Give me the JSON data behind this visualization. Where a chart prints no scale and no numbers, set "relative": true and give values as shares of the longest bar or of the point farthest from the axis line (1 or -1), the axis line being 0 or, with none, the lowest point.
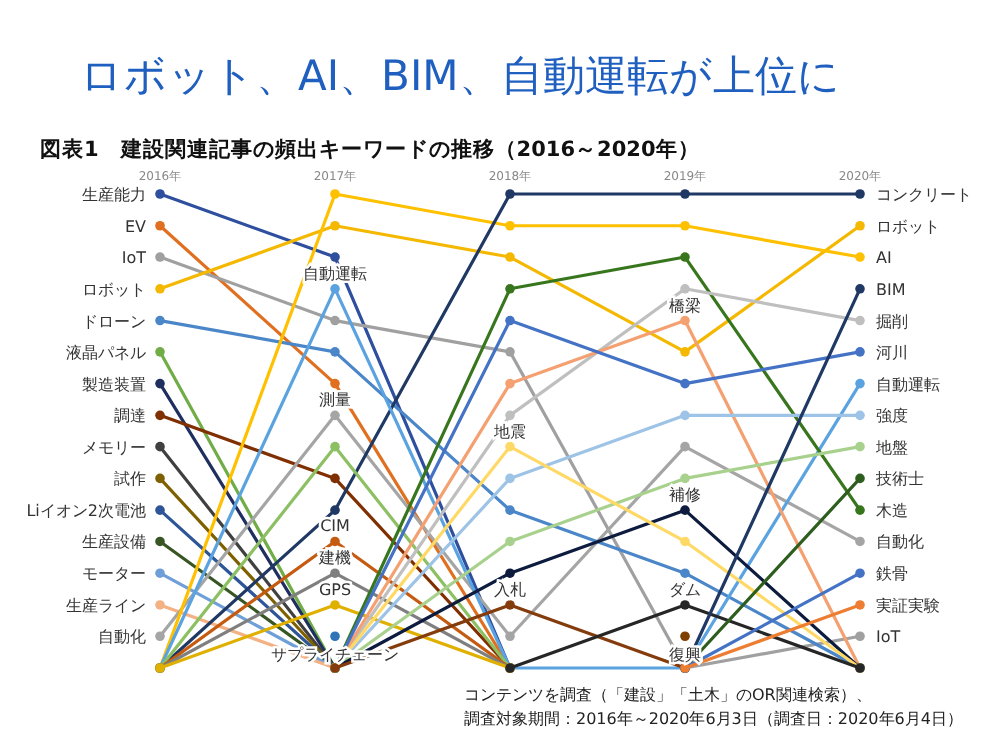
{
  "chart_data": {
    "type": "line",
    "relative": true,
    "marker": "circle",
    "title": "ロボット、AI、BIM、自動運転が上位に",
    "subtitle": "図表1　建設関連記事の頻出キーワードの推移（2016～2020年）",
    "categories": [
      "2016年",
      "2017年",
      "2018年",
      "2019年",
      "2020年"
    ],
    "series": [
      {
        "color": "#2e4e9e",
        "values": [
          1,
          0.867,
          0,
          null,
          null
        ]
      },
      {
        "color": "#e07020",
        "values": [
          0.933,
          0.6,
          0,
          null,
          null
        ]
      },
      {
        "color": "#a0a0a0",
        "values": [
          0.867,
          0.733,
          0.667,
          0,
          0.067
        ]
      },
      {
        "color": "#f5b800",
        "values": [
          0.8,
          0.933,
          0.867,
          0.667,
          0.933
        ]
      },
      {
        "color": "#4a86c8",
        "values": [
          0.733,
          0.667,
          0.333,
          0.2,
          0
        ]
      },
      {
        "color": "#70ad47",
        "values": [
          0.667,
          0,
          null,
          null,
          null
        ]
      },
      {
        "color": "#1f2f5f",
        "values": [
          0.6,
          0,
          null,
          null,
          null
        ]
      },
      {
        "color": "#7f2f00",
        "values": [
          0.533,
          0.4,
          0,
          null,
          null
        ]
      },
      {
        "color": "#404040",
        "values": [
          0.467,
          0,
          null,
          null,
          null
        ]
      },
      {
        "color": "#7f6000",
        "values": [
          0.4,
          0,
          null,
          null,
          null
        ]
      },
      {
        "color": "#2e5597",
        "values": [
          0.333,
          0,
          null,
          null,
          null
        ]
      },
      {
        "color": "#375623",
        "values": [
          0.267,
          0,
          null,
          null,
          null
        ]
      },
      {
        "color": "#6f9fd8",
        "values": [
          0.2,
          0,
          null,
          null,
          null
        ]
      },
      {
        "color": "#f4b183",
        "values": [
          0.133,
          0,
          null,
          null,
          null
        ]
      },
      {
        "color": "#a5a5a5",
        "values": [
          0.067,
          0.533,
          0.067,
          0.467,
          0.267
        ]
      },
      {
        "color": "#ffc000",
        "values": [
          0,
          1,
          0.933,
          0.933,
          0.867
        ]
      },
      {
        "color": "#1f3864",
        "values": [
          0,
          0.333,
          1,
          1,
          1
        ]
      },
      {
        "color": "#5ba3e0",
        "values": [
          0,
          0.8,
          0,
          0,
          0.6
        ]
      },
      {
        "color": "#8cc063",
        "values": [
          0,
          0.467,
          0,
          null,
          null
        ]
      },
      {
        "color": "#c55a11",
        "values": [
          0,
          0.267,
          0,
          null,
          null
        ]
      },
      {
        "color": "#7f7f7f",
        "values": [
          0,
          0.2,
          0,
          null,
          null
        ]
      },
      {
        "color": "#e0b000",
        "values": [
          0,
          0.133,
          0,
          null,
          null
        ]
      },
      {
        "color": "#2e75b6",
        "values": [
          null,
          0.067,
          null,
          null,
          null
        ]
      },
      {
        "color": "#38761d",
        "values": [
          null,
          0,
          0.8,
          0.867,
          0.333
        ]
      },
      {
        "color": "#bfbfbf",
        "values": [
          null,
          0,
          0.533,
          0.8,
          0.733
        ]
      },
      {
        "color": "#f4a070",
        "values": [
          null,
          0,
          0.6,
          0.733,
          0
        ]
      },
      {
        "color": "#4472c4",
        "values": [
          null,
          0,
          0.733,
          0.6,
          0.667
        ]
      },
      {
        "color": "#9dc3e6",
        "values": [
          null,
          0,
          0.4,
          0.533,
          0.533
        ]
      },
      {
        "color": "#a9d18e",
        "values": [
          null,
          0,
          0.267,
          0.4,
          0.467
        ]
      },
      {
        "color": "#0d1b3e",
        "values": [
          null,
          0,
          0.2,
          0.333,
          0
        ]
      },
      {
        "color": "#ffd966",
        "values": [
          null,
          0,
          0.467,
          0.267,
          0
        ]
      },
      {
        "color": "#843c0c",
        "values": [
          null,
          0,
          0.133,
          0,
          null
        ]
      },
      {
        "color": "#262626",
        "values": [
          null,
          null,
          0,
          0.133,
          0
        ]
      },
      {
        "color": "#7f3f00",
        "values": [
          null,
          null,
          null,
          0.067,
          null
        ]
      },
      {
        "color": "#1f3864",
        "values": [
          null,
          null,
          null,
          0,
          0.8
        ]
      },
      {
        "color": "#2e5e1e",
        "values": [
          null,
          null,
          null,
          0,
          0.4
        ]
      },
      {
        "color": "#4472c4",
        "values": [
          null,
          null,
          null,
          0,
          0.2
        ]
      },
      {
        "color": "#ed7d31",
        "values": [
          null,
          null,
          null,
          0,
          0.133
        ]
      }
    ],
    "annotations": [
      {
        "text": "生産能力",
        "x": "2016年",
        "y": 1
      },
      {
        "text": "EV",
        "x": "2016年",
        "y": 0.933
      },
      {
        "text": "IoT",
        "x": "2016年",
        "y": 0.867
      },
      {
        "text": "ロボット",
        "x": "2016年",
        "y": 0.8
      },
      {
        "text": "ドローン",
        "x": "2016年",
        "y": 0.733
      },
      {
        "text": "液晶パネル",
        "x": "2016年",
        "y": 0.667
      },
      {
        "text": "製造装置",
        "x": "2016年",
        "y": 0.6
      },
      {
        "text": "調達",
        "x": "2016年",
        "y": 0.533
      },
      {
        "text": "メモリー",
        "x": "2016年",
        "y": 0.467
      },
      {
        "text": "試作",
        "x": "2016年",
        "y": 0.4
      },
      {
        "text": "Liイオン2次電池",
        "x": "2016年",
        "y": 0.333
      },
      {
        "text": "生産設備",
        "x": "2016年",
        "y": 0.267
      },
      {
        "text": "モーター",
        "x": "2016年",
        "y": 0.2
      },
      {
        "text": "生産ライン",
        "x": "2016年",
        "y": 0.133
      },
      {
        "text": "自動化",
        "x": "2016年",
        "y": 0.067
      },
      {
        "text": "コンクリート",
        "x": "2020年",
        "y": 1
      },
      {
        "text": "ロボット",
        "x": "2020年",
        "y": 0.933
      },
      {
        "text": "AI",
        "x": "2020年",
        "y": 0.867
      },
      {
        "text": "BIM",
        "x": "2020年",
        "y": 0.8
      },
      {
        "text": "掘削",
        "x": "2020年",
        "y": 0.733
      },
      {
        "text": "河川",
        "x": "2020年",
        "y": 0.667
      },
      {
        "text": "自動運転",
        "x": "2020年",
        "y": 0.6
      },
      {
        "text": "強度",
        "x": "2020年",
        "y": 0.533
      },
      {
        "text": "地盤",
        "x": "2020年",
        "y": 0.467
      },
      {
        "text": "技術士",
        "x": "2020年",
        "y": 0.4
      },
      {
        "text": "木造",
        "x": "2020年",
        "y": 0.333
      },
      {
        "text": "自動化",
        "x": "2020年",
        "y": 0.267
      },
      {
        "text": "鉄骨",
        "x": "2020年",
        "y": 0.2
      },
      {
        "text": "実証実験",
        "x": "2020年",
        "y": 0.133
      },
      {
        "text": "IoT",
        "x": "2020年",
        "y": 0.067
      },
      {
        "text": "自動運転",
        "x": "2017年",
        "y": 0.8
      },
      {
        "text": "測量",
        "x": "2017年",
        "y": 0.533
      },
      {
        "text": "CIM",
        "x": "2017年",
        "y": 0.267
      },
      {
        "text": "建機",
        "x": "2017年",
        "y": 0.2
      },
      {
        "text": "GPS",
        "x": "2017年",
        "y": 0.133
      },
      {
        "text": "サプライチェーン",
        "x": "2017年",
        "y": 0.067
      },
      {
        "text": "地震",
        "x": "2018年",
        "y": 0.467
      },
      {
        "text": "入札",
        "x": "2018年",
        "y": 0.133
      },
      {
        "text": "橋梁",
        "x": "2019年",
        "y": 0.733
      },
      {
        "text": "補修",
        "x": "2019年",
        "y": 0.333
      },
      {
        "text": "ダム",
        "x": "2019年",
        "y": 0.133
      },
      {
        "text": "復興",
        "x": "2019年",
        "y": 0.067
      },
      "コンテンツを調査（「建設」「土木」のOR関連検索）、",
      "調査対象期間：2016年～2020年6月3日（調査日：2020年6月4日）"
    ]
  }
}
